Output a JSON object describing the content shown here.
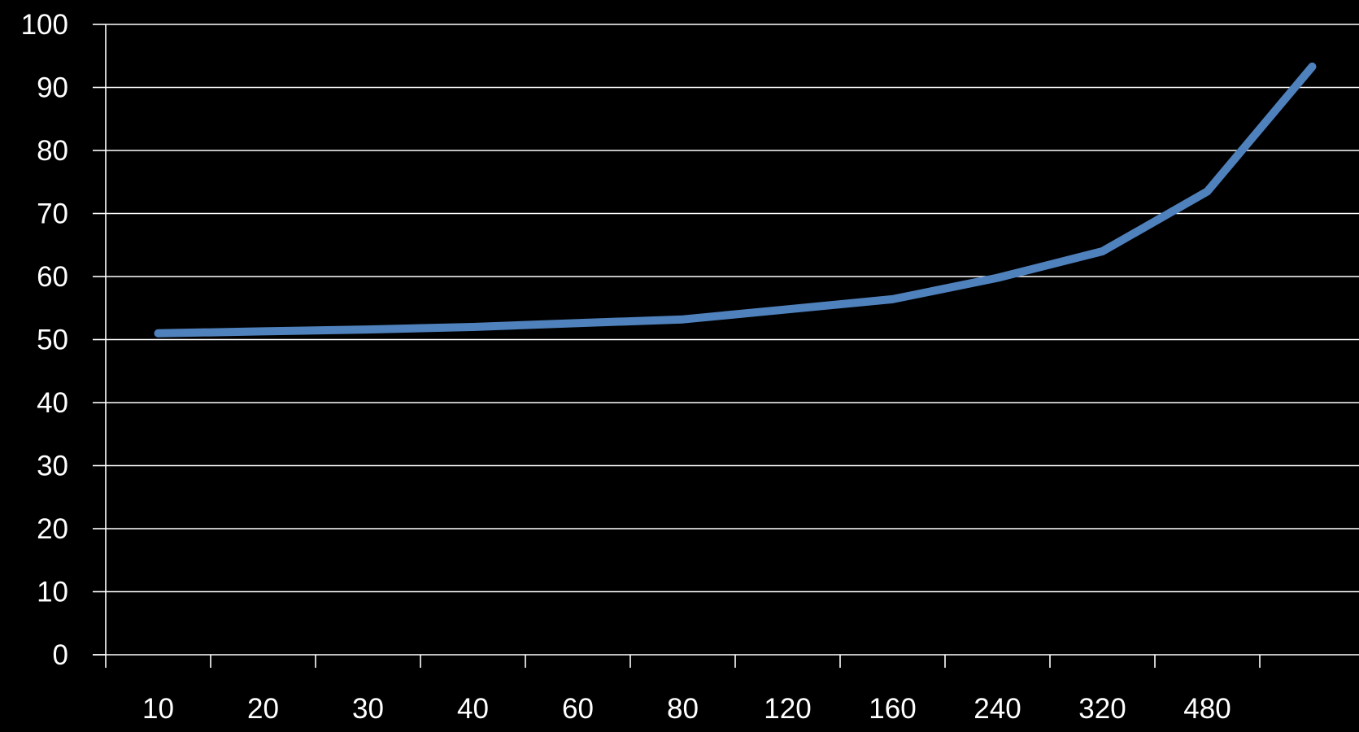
{
  "chart_data": {
    "type": "line",
    "categories": [
      "10",
      "20",
      "30",
      "40",
      "60",
      "80",
      "120",
      "160",
      "240",
      "320",
      "480",
      ""
    ],
    "y_ticks": [
      "0",
      "10",
      "20",
      "30",
      "40",
      "50",
      "60",
      "70",
      "80",
      "90",
      "100"
    ],
    "ylim": [
      0,
      100
    ],
    "grid": true,
    "series": [
      {
        "values": [
          51.0,
          51.3,
          51.6,
          52.0,
          52.6,
          53.2,
          54.8,
          56.4,
          59.8,
          64.0,
          73.5,
          93.3
        ],
        "color": "#4f81bd"
      }
    ],
    "title": "",
    "xlabel": "",
    "ylabel": ""
  }
}
